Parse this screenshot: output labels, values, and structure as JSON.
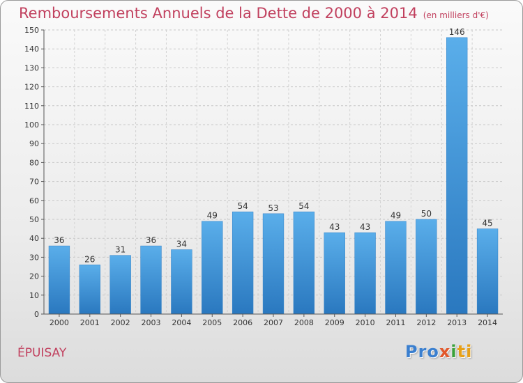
{
  "chart_data": {
    "type": "bar",
    "title": "Remboursements Annuels de la Dette de 2000 à 2014",
    "subtitle": "(en milliers d'€)",
    "categories": [
      "2000",
      "2001",
      "2002",
      "2003",
      "2004",
      "2005",
      "2006",
      "2007",
      "2008",
      "2009",
      "2010",
      "2011",
      "2012",
      "2013",
      "2014"
    ],
    "values": [
      36,
      26,
      31,
      36,
      34,
      49,
      54,
      53,
      54,
      43,
      43,
      49,
      50,
      146,
      45
    ],
    "yticks": [
      0,
      10,
      20,
      30,
      40,
      50,
      60,
      70,
      80,
      90,
      100,
      110,
      120,
      130,
      140,
      150
    ],
    "ylim": [
      0,
      150
    ],
    "xlabel": "",
    "ylabel": "",
    "grid": true,
    "bar_color": "#4aa0e2",
    "bar_color_dark": "#2b78bf"
  },
  "commune": "ÉPUISAY",
  "logo": {
    "p1": "Pro",
    "p2": "x",
    "p3": "i",
    "p4": "ti"
  }
}
